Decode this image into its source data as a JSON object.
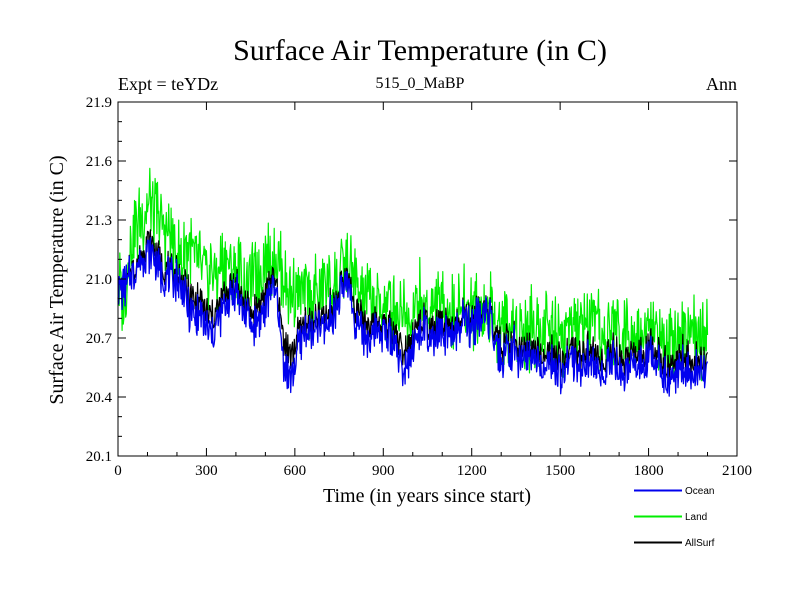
{
  "chart_data": {
    "type": "line",
    "title": "Surface Air Temperature (in C)",
    "subtitle_left": "Expt = teYDz",
    "subtitle_center": "515_0_MaBP",
    "subtitle_right": "Ann",
    "xlabel": "Time (in years since start)",
    "ylabel": "Surface Air Temperature (in C)",
    "xlim": [
      0,
      2100
    ],
    "ylim": [
      20.1,
      21.9
    ],
    "xticks": [
      0,
      300,
      600,
      900,
      1200,
      1500,
      1800,
      2100
    ],
    "xtick_labels": [
      "0",
      "300",
      "600",
      "900",
      "1200",
      "1500",
      "1800",
      "2100"
    ],
    "yticks": [
      20.1,
      20.4,
      20.7,
      21.0,
      21.3,
      21.6,
      21.9
    ],
    "ytick_labels": [
      "20.1",
      "20.4",
      "20.7",
      "21.0",
      "21.3",
      "21.6",
      "21.9"
    ],
    "legend_position": "bottom-right",
    "series": [
      {
        "name": "Land",
        "color": "#00ee00",
        "x": [
          0,
          20,
          40,
          60,
          80,
          100,
          120,
          140,
          160,
          180,
          200,
          220,
          240,
          260,
          280,
          300,
          320,
          340,
          360,
          380,
          400,
          420,
          440,
          460,
          480,
          500,
          520,
          540,
          560,
          580,
          600,
          620,
          640,
          660,
          680,
          700,
          720,
          740,
          760,
          780,
          800,
          820,
          840,
          860,
          880,
          900,
          920,
          940,
          960,
          980,
          1000,
          1020,
          1040,
          1060,
          1080,
          1100,
          1120,
          1140,
          1160,
          1180,
          1200,
          1220,
          1240,
          1260,
          1280,
          1300,
          1320,
          1340,
          1360,
          1380,
          1400,
          1420,
          1440,
          1460,
          1480,
          1500,
          1520,
          1540,
          1560,
          1580,
          1600,
          1620,
          1640,
          1660,
          1680,
          1700,
          1720,
          1740,
          1760,
          1780,
          1800,
          1820,
          1840,
          1860,
          1880,
          1900,
          1920,
          1940,
          1960,
          1980,
          2000
        ],
        "values": [
          21.0,
          20.85,
          21.15,
          21.25,
          21.3,
          21.4,
          21.35,
          21.3,
          21.25,
          21.2,
          21.15,
          21.1,
          21.2,
          21.1,
          21.05,
          21.0,
          21.05,
          21.0,
          21.1,
          21.05,
          21.05,
          21.0,
          20.95,
          21.0,
          21.05,
          21.1,
          21.1,
          21.1,
          21.0,
          20.95,
          20.95,
          20.9,
          20.95,
          20.9,
          20.95,
          20.95,
          21.0,
          20.95,
          21.05,
          21.05,
          21.0,
          20.95,
          20.9,
          20.9,
          20.85,
          20.85,
          20.85,
          20.85,
          20.85,
          20.85,
          20.8,
          20.9,
          20.85,
          20.85,
          20.85,
          20.85,
          20.85,
          20.8,
          20.85,
          20.85,
          20.85,
          20.85,
          20.85,
          20.85,
          20.8,
          20.75,
          20.8,
          20.75,
          20.75,
          20.75,
          20.75,
          20.75,
          20.75,
          20.75,
          20.75,
          20.75,
          20.7,
          20.75,
          20.75,
          20.75,
          20.75,
          20.75,
          20.7,
          20.7,
          20.75,
          20.75,
          20.7,
          20.75,
          20.75,
          20.7,
          20.75,
          20.75,
          20.7,
          20.7,
          20.7,
          20.7,
          20.75,
          20.7,
          20.7,
          20.7,
          20.7
        ]
      },
      {
        "name": "Ocean",
        "color": "#0000ee",
        "x": [
          0,
          20,
          40,
          60,
          80,
          100,
          120,
          140,
          160,
          180,
          200,
          220,
          240,
          260,
          280,
          300,
          320,
          340,
          360,
          380,
          400,
          420,
          440,
          460,
          480,
          500,
          520,
          540,
          560,
          580,
          600,
          620,
          640,
          660,
          680,
          700,
          720,
          740,
          760,
          780,
          800,
          820,
          840,
          860,
          880,
          900,
          920,
          940,
          960,
          980,
          1000,
          1020,
          1040,
          1060,
          1080,
          1100,
          1120,
          1140,
          1160,
          1180,
          1200,
          1220,
          1240,
          1260,
          1280,
          1300,
          1320,
          1340,
          1360,
          1380,
          1400,
          1420,
          1440,
          1460,
          1480,
          1500,
          1520,
          1540,
          1560,
          1580,
          1600,
          1620,
          1640,
          1660,
          1680,
          1700,
          1720,
          1740,
          1760,
          1780,
          1800,
          1820,
          1840,
          1860,
          1880,
          1900,
          1920,
          1940,
          1960,
          1980,
          2000
        ],
        "values": [
          20.95,
          20.95,
          21.0,
          21.05,
          21.1,
          21.15,
          21.1,
          21.05,
          21.0,
          21.0,
          21.0,
          20.95,
          20.85,
          20.8,
          20.8,
          20.75,
          20.7,
          20.8,
          20.85,
          20.9,
          20.95,
          20.85,
          20.8,
          20.75,
          20.8,
          20.85,
          20.95,
          20.9,
          20.6,
          20.5,
          20.55,
          20.7,
          20.75,
          20.7,
          20.75,
          20.75,
          20.8,
          20.85,
          20.95,
          21.0,
          20.8,
          20.75,
          20.7,
          20.7,
          20.75,
          20.75,
          20.7,
          20.7,
          20.55,
          20.6,
          20.65,
          20.7,
          20.75,
          20.65,
          20.7,
          20.7,
          20.7,
          20.7,
          20.75,
          20.8,
          20.75,
          20.8,
          20.8,
          20.8,
          20.65,
          20.6,
          20.6,
          20.65,
          20.6,
          20.6,
          20.6,
          20.6,
          20.55,
          20.6,
          20.55,
          20.5,
          20.55,
          20.6,
          20.55,
          20.55,
          20.6,
          20.55,
          20.5,
          20.55,
          20.6,
          20.55,
          20.5,
          20.6,
          20.55,
          20.55,
          20.6,
          20.6,
          20.55,
          20.5,
          20.5,
          20.55,
          20.55,
          20.5,
          20.55,
          20.55,
          20.55
        ]
      },
      {
        "name": "AllSurf",
        "color": "#000000",
        "x": [
          0,
          20,
          40,
          60,
          80,
          100,
          120,
          140,
          160,
          180,
          200,
          220,
          240,
          260,
          280,
          300,
          320,
          340,
          360,
          380,
          400,
          420,
          440,
          460,
          480,
          500,
          520,
          540,
          560,
          580,
          600,
          620,
          640,
          660,
          680,
          700,
          720,
          740,
          760,
          780,
          800,
          820,
          840,
          860,
          880,
          900,
          920,
          940,
          960,
          980,
          1000,
          1020,
          1040,
          1060,
          1080,
          1100,
          1120,
          1140,
          1160,
          1180,
          1200,
          1220,
          1240,
          1260,
          1280,
          1300,
          1320,
          1340,
          1360,
          1380,
          1400,
          1420,
          1440,
          1460,
          1480,
          1500,
          1520,
          1540,
          1560,
          1580,
          1600,
          1620,
          1640,
          1660,
          1680,
          1700,
          1720,
          1740,
          1760,
          1780,
          1800,
          1820,
          1840,
          1860,
          1880,
          1900,
          1920,
          1940,
          1960,
          1980,
          2000
        ],
        "values": [
          20.95,
          20.95,
          21.02,
          21.07,
          21.13,
          21.2,
          21.15,
          21.1,
          21.05,
          21.03,
          21.03,
          20.98,
          20.93,
          20.88,
          20.87,
          20.82,
          20.8,
          20.85,
          20.92,
          20.95,
          20.98,
          20.9,
          20.85,
          20.82,
          20.87,
          20.92,
          21.0,
          20.95,
          20.72,
          20.62,
          20.65,
          20.75,
          20.8,
          20.75,
          20.8,
          20.8,
          20.85,
          20.88,
          20.98,
          21.02,
          20.87,
          20.82,
          20.77,
          20.77,
          20.78,
          20.78,
          20.75,
          20.75,
          20.65,
          20.68,
          20.7,
          20.77,
          20.78,
          20.72,
          20.75,
          20.75,
          20.75,
          20.73,
          20.78,
          20.82,
          20.78,
          20.82,
          20.82,
          20.82,
          20.7,
          20.65,
          20.67,
          20.68,
          20.65,
          20.65,
          20.65,
          20.65,
          20.62,
          20.65,
          20.62,
          20.58,
          20.6,
          20.65,
          20.62,
          20.62,
          20.65,
          20.62,
          20.57,
          20.6,
          20.65,
          20.62,
          20.57,
          20.65,
          20.62,
          20.6,
          20.65,
          20.65,
          20.6,
          20.57,
          20.57,
          20.6,
          20.62,
          20.57,
          20.6,
          20.6,
          20.6
        ]
      }
    ],
    "legend": [
      "Ocean",
      "Land",
      "AllSurf"
    ]
  }
}
